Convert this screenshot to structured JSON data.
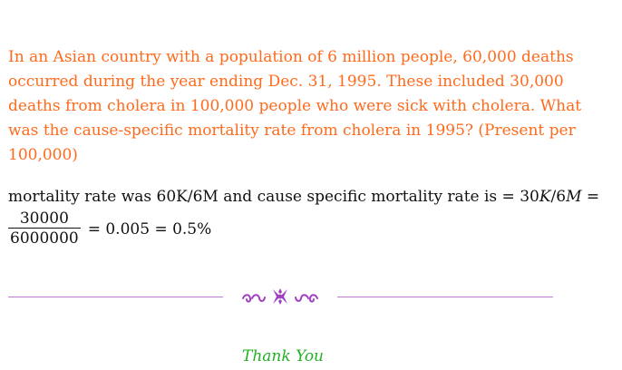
{
  "question": {
    "lines": [
      "In an Asian country with a population of 6 million people, 60,000 deaths",
      "occurred during the year ending Dec.  31, 1995.  These included 30,000",
      "deaths from cholera in 100,000 people who were sick with cholera.  What",
      "was the cause-specific mortality rate from cholera in 1995?  (Present per",
      "100,000)"
    ]
  },
  "answer": {
    "line1_prefix": "mortality rate was 60K/6M and cause specific mortality rate is = 30",
    "line1_k": "K",
    "line1_slash": "/6",
    "line1_m": "M",
    "line1_eq": " =",
    "fraction_numerator": "30000",
    "fraction_denominator": "6000000",
    "result": "= 0.005 = 0.5%"
  },
  "footer": {
    "thanks": "Thank You"
  },
  "colors": {
    "question": "#ff6a1c",
    "divider": "#c07ad0",
    "thanks": "#22b022"
  }
}
